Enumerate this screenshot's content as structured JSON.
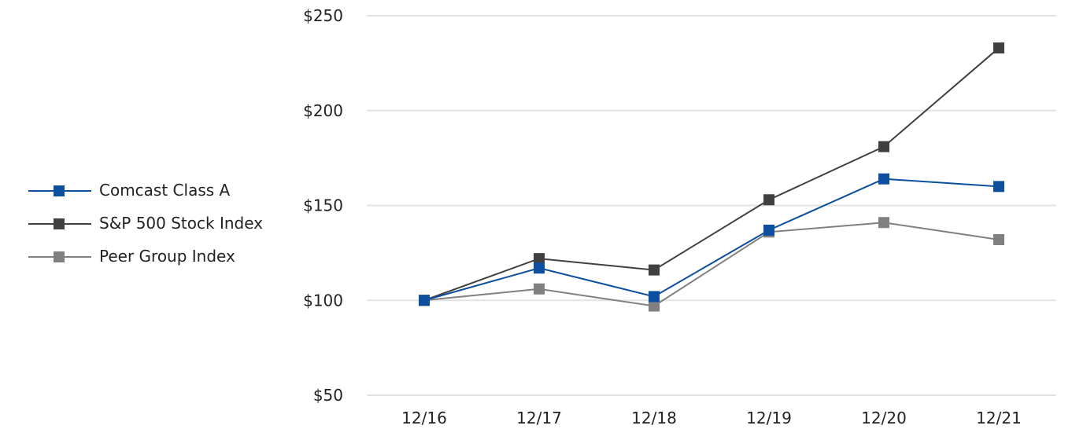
{
  "chart_data": {
    "type": "line",
    "categories": [
      "12/16",
      "12/17",
      "12/18",
      "12/19",
      "12/20",
      "12/21"
    ],
    "series": [
      {
        "name": "Comcast Class A",
        "color": "#0d4f9e",
        "values": [
          100,
          117,
          102,
          137,
          164,
          160
        ]
      },
      {
        "name": "S&P 500 Stock Index",
        "color": "#404040",
        "values": [
          100,
          122,
          116,
          153,
          181,
          233
        ]
      },
      {
        "name": "Peer Group Index",
        "color": "#808080",
        "values": [
          100,
          106,
          97,
          136,
          141,
          132
        ]
      }
    ],
    "y_ticks": [
      50,
      100,
      150,
      200,
      250
    ],
    "y_tick_labels": [
      "$50",
      "$100",
      "$150",
      "$200",
      "$250"
    ],
    "ylim": [
      50,
      250
    ],
    "grid": "horizontal",
    "legend_position": "left"
  }
}
